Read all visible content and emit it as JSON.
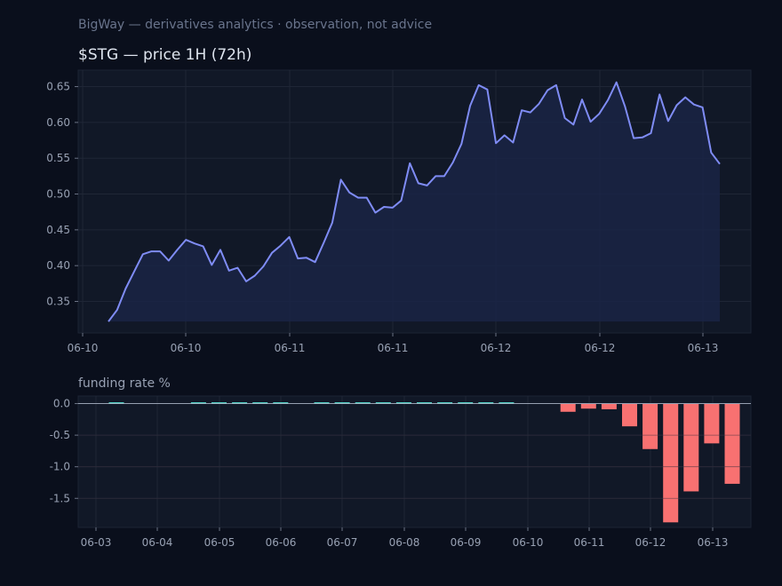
{
  "header": {
    "subtitle": "BigWay — derivatives analytics · observation, not advice"
  },
  "colors": {
    "background": "#0a0f1c",
    "panel": "#111827",
    "price_line": "#7f8cf5",
    "positive_bar": "#4fd1c5",
    "negative_bar": "#f87171",
    "grid": "#1f2636"
  },
  "chart_data": [
    {
      "type": "area",
      "title": "$STG — price 1H (72h)",
      "xlabel": "",
      "ylabel": "",
      "x_tick_labels": [
        "06-10",
        "06-10",
        "06-11",
        "06-11",
        "06-12",
        "06-12",
        "06-13"
      ],
      "y_ticks": [
        0.35,
        0.4,
        0.45,
        0.5,
        0.55,
        0.6,
        0.65
      ],
      "ylim": [
        0.306,
        0.673
      ],
      "grid": true,
      "series": [
        {
          "values": [
            0.322,
            0.338,
            0.368,
            0.392,
            0.416,
            0.42,
            0.42,
            0.407,
            0.422,
            0.436,
            0.431,
            0.427,
            0.401,
            0.422,
            0.393,
            0.397,
            0.378,
            0.386,
            0.399,
            0.418,
            0.428,
            0.44,
            0.41,
            0.411,
            0.405,
            0.432,
            0.46,
            0.52,
            0.502,
            0.495,
            0.495,
            0.474,
            0.482,
            0.481,
            0.491,
            0.543,
            0.515,
            0.512,
            0.525,
            0.525,
            0.544,
            0.57,
            0.623,
            0.652,
            0.646,
            0.571,
            0.582,
            0.572,
            0.617,
            0.614,
            0.626,
            0.645,
            0.652,
            0.606,
            0.597,
            0.632,
            0.601,
            0.612,
            0.631,
            0.656,
            0.622,
            0.578,
            0.579,
            0.585,
            0.639,
            0.602,
            0.624,
            0.635,
            0.625,
            0.621,
            0.558,
            0.542
          ]
        }
      ]
    },
    {
      "type": "bar",
      "title": "funding rate %",
      "xlabel": "",
      "ylabel": "",
      "x_tick_labels": [
        "06-03",
        "06-04",
        "06-05",
        "06-06",
        "06-07",
        "06-08",
        "06-09",
        "06-10",
        "06-11",
        "06-12",
        "06-13"
      ],
      "y_ticks": [
        0.0,
        -0.5,
        -1.0,
        -1.5
      ],
      "ylim": [
        -1.96,
        0.12
      ],
      "grid": true,
      "values": [
        0.005,
        0,
        0,
        0,
        0.005,
        0.005,
        0.005,
        0.005,
        0.005,
        0,
        0.005,
        0.005,
        0.005,
        0.005,
        0.005,
        0.005,
        0.005,
        0.005,
        0.005,
        0.005,
        0,
        0,
        -0.13,
        -0.08,
        -0.09,
        -0.36,
        -0.72,
        -1.88,
        -1.39,
        -0.63,
        -1.27
      ]
    }
  ]
}
